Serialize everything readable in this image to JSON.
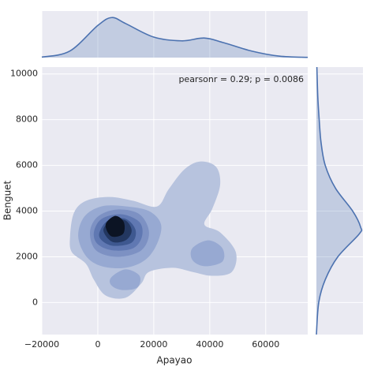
{
  "chart_data": {
    "type": "kde-joint",
    "xlabel": "Apayao",
    "ylabel": "Benguet",
    "annotation": "pearsonr = 0.29; p = 0.0086",
    "xlim": [
      -20000,
      75000
    ],
    "ylim": [
      -1400,
      10300
    ],
    "xticks": [
      {
        "value": -20000,
        "label": "−20000"
      },
      0,
      20000,
      40000,
      60000
    ],
    "yticks": [
      0,
      2000,
      4000,
      6000,
      8000,
      10000
    ],
    "grid": true,
    "line_color": "#4c72b0",
    "contours": [
      {
        "color": "#b7c3de",
        "x": [
          -9900,
          -8500,
          -4200,
          4200,
          12700,
          21100,
          25400,
          31000,
          36700,
          42300,
          43700,
          40900,
          38100,
          43700,
          49300,
          47900,
          40900,
          33800,
          26800,
          18300,
          15500,
          9900,
          2800,
          -1400,
          -4200,
          -9300
        ],
        "y": [
          2900,
          3930,
          4450,
          4620,
          4450,
          4200,
          4970,
          5830,
          6170,
          5930,
          5140,
          4100,
          3410,
          3070,
          2210,
          1340,
          1170,
          1340,
          1520,
          1340,
          830,
          210,
          310,
          1000,
          1690,
          2210
        ]
      },
      {
        "color": "#97a9d2",
        "x": [
          -7000,
          -4800,
          1400,
          9900,
          18300,
          22600,
          21100,
          16900,
          9900,
          1400,
          -4200
        ],
        "y": [
          2900,
          3760,
          4210,
          4210,
          4000,
          3410,
          2550,
          1860,
          1520,
          1590,
          2030
        ]
      },
      {
        "color": "#97a9d2",
        "x": [
          4800,
          9900,
          14900,
          14100,
          8500,
          4800
        ],
        "y": [
          1100,
          1450,
          1170,
          660,
          550,
          760
        ]
      },
      {
        "color": "#97a9d2",
        "x": [
          33800,
          39500,
          44500,
          44500,
          38100,
          33800
        ],
        "y": [
          2380,
          2720,
          2380,
          1790,
          1590,
          1860
        ]
      },
      {
        "color": "#7d91c3",
        "x": [
          -2800,
          0,
          7000,
          14900,
          18300,
          15500,
          7000,
          -600
        ],
        "y": [
          3070,
          3760,
          4070,
          3860,
          3070,
          2280,
          2000,
          2280
        ]
      },
      {
        "color": "#6078b2",
        "x": [
          -1400,
          1400,
          8500,
          14900,
          15800,
          12700,
          5600,
          0
        ],
        "y": [
          3070,
          3660,
          3860,
          3520,
          2900,
          2380,
          2280,
          2550
        ]
      },
      {
        "color": "#3e5890",
        "x": [
          600,
          3700,
          9900,
          13500,
          12100,
          5600,
          1400
        ],
        "y": [
          3070,
          3590,
          3660,
          3170,
          2620,
          2480,
          2720
        ]
      },
      {
        "color": "#233760",
        "x": [
          2000,
          5100,
          9900,
          12100,
          9900,
          5100
        ],
        "y": [
          3170,
          3590,
          3590,
          3140,
          2720,
          2660
        ]
      },
      {
        "color": "#0c1424",
        "x": [
          2800,
          6200,
          9300,
          9000,
          4800
        ],
        "y": [
          3410,
          3790,
          3520,
          3000,
          2900
        ]
      }
    ],
    "x_marginal": {
      "x": [
        -20000,
        -10000,
        0,
        5000,
        10000,
        20000,
        30000,
        38000,
        45000,
        55000,
        65000,
        75000
      ],
      "density": [
        0.01,
        0.14,
        0.69,
        0.86,
        0.73,
        0.44,
        0.36,
        0.42,
        0.32,
        0.14,
        0.03,
        0.005
      ]
    },
    "y_marginal": {
      "y": [
        -1400,
        0,
        1000,
        2000,
        3000,
        3300,
        4000,
        5000,
        6000,
        7000,
        8000,
        9000,
        10300
      ],
      "density": [
        0.0,
        0.05,
        0.19,
        0.46,
        0.92,
        0.95,
        0.78,
        0.41,
        0.19,
        0.1,
        0.06,
        0.03,
        0.01
      ]
    }
  }
}
